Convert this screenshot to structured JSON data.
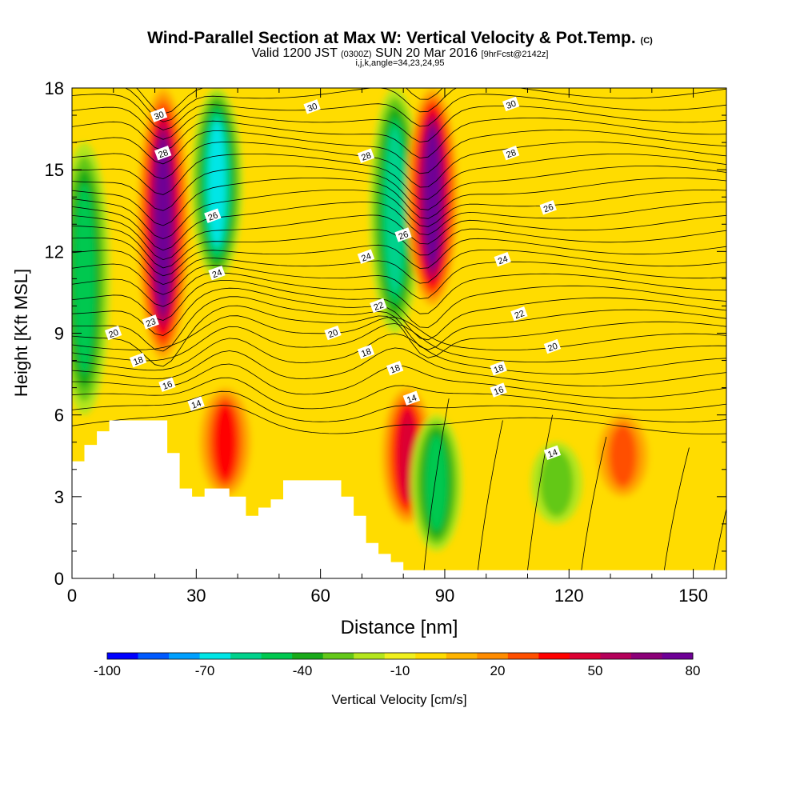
{
  "chart_data": {
    "type": "heatmap",
    "title": "Wind-Parallel Section at Max W: Vertical Velocity & Pot.Temp.",
    "title_mark": "(C)",
    "subtitle_main": "Valid 1200 JST",
    "subtitle_utc": "(0300Z)",
    "subtitle_date": "SUN 20 Mar 2016",
    "subtitle_fcst": "[9hrFcst@2142z]",
    "subsubtitle": "i,j,k,angle=34,23,24,95",
    "xlabel": "Distance [nm]",
    "ylabel": "Height [Kft MSL]",
    "xlim": [
      0,
      158
    ],
    "ylim": [
      0,
      18
    ],
    "xticks": [
      "0",
      "30",
      "60",
      "90",
      "120",
      "150"
    ],
    "yticks": [
      "0",
      "3",
      "6",
      "9",
      "12",
      "15",
      "18"
    ],
    "colorbar_label": "Vertical Velocity [cm/s]",
    "colorbar_ticks": [
      "-100",
      "-70",
      "-40",
      "-10",
      "20",
      "50",
      "80"
    ],
    "colorbar_colors": [
      "#0000ff",
      "#005aff",
      "#00a0ff",
      "#00e6e6",
      "#00d28c",
      "#00c850",
      "#19aa19",
      "#64c819",
      "#b4e61e",
      "#f0f01e",
      "#ffdc00",
      "#ffb400",
      "#ff8c00",
      "#ff5000",
      "#ff0000",
      "#dc0032",
      "#b4005a",
      "#8c0078",
      "#6e0096"
    ],
    "velocity_features": [
      {
        "kind": "updraft",
        "x": 22,
        "y_range": [
          8,
          18
        ],
        "peak_cms": 80
      },
      {
        "kind": "downdraft",
        "x": 3,
        "y_range": [
          6,
          16
        ],
        "peak_cms": -40
      },
      {
        "kind": "downdraft",
        "x": 35,
        "y_range": [
          11,
          18
        ],
        "peak_cms": -60
      },
      {
        "kind": "updraft",
        "x": 37,
        "y_range": [
          3,
          7
        ],
        "peak_cms": 40
      },
      {
        "kind": "downdraft",
        "x": 78,
        "y_range": [
          9,
          18
        ],
        "peak_cms": -50
      },
      {
        "kind": "updraft",
        "x": 87,
        "y_range": [
          10,
          18
        ],
        "peak_cms": 80
      },
      {
        "kind": "updraft",
        "x": 81,
        "y_range": [
          2,
          7
        ],
        "peak_cms": 50
      },
      {
        "kind": "downdraft",
        "x": 88,
        "y_range": [
          1,
          6
        ],
        "peak_cms": -40
      },
      {
        "kind": "downdraft",
        "x": 117,
        "y_range": [
          2,
          5
        ],
        "peak_cms": -20
      },
      {
        "kind": "updraft",
        "x": 133,
        "y_range": [
          3,
          6
        ],
        "peak_cms": 30
      }
    ],
    "terrain_kft": [
      [
        0,
        4.3
      ],
      [
        3,
        4.3
      ],
      [
        3,
        4.9
      ],
      [
        6,
        4.9
      ],
      [
        6,
        5.4
      ],
      [
        9,
        5.4
      ],
      [
        9,
        5.8
      ],
      [
        23,
        5.8
      ],
      [
        23,
        4.6
      ],
      [
        26,
        4.6
      ],
      [
        26,
        3.3
      ],
      [
        29,
        3.3
      ],
      [
        29,
        3.0
      ],
      [
        32,
        3.0
      ],
      [
        32,
        3.3
      ],
      [
        38,
        3.3
      ],
      [
        38,
        3.0
      ],
      [
        42,
        3.0
      ],
      [
        42,
        2.3
      ],
      [
        45,
        2.3
      ],
      [
        45,
        2.6
      ],
      [
        48,
        2.6
      ],
      [
        48,
        2.9
      ],
      [
        51,
        2.9
      ],
      [
        51,
        3.6
      ],
      [
        65,
        3.6
      ],
      [
        65,
        3.0
      ],
      [
        68,
        3.0
      ],
      [
        68,
        2.3
      ],
      [
        71,
        2.3
      ],
      [
        71,
        1.3
      ],
      [
        74,
        1.3
      ],
      [
        74,
        0.9
      ],
      [
        77,
        0.9
      ],
      [
        77,
        0.6
      ],
      [
        80,
        0.6
      ],
      [
        80,
        0.3
      ],
      [
        158,
        0.3
      ]
    ],
    "theta_contours": [
      {
        "level": "14",
        "label_pos": [
          [
            30,
            6.4
          ],
          [
            82,
            6.6
          ],
          [
            116,
            4.6
          ]
        ]
      },
      {
        "level": "16",
        "label_pos": [
          [
            23,
            7.1
          ],
          [
            103,
            6.9
          ]
        ]
      },
      {
        "level": "18",
        "label_pos": [
          [
            16,
            8.0
          ],
          [
            71,
            8.3
          ],
          [
            78,
            7.7
          ],
          [
            103,
            7.7
          ]
        ]
      },
      {
        "level": "20",
        "label_pos": [
          [
            10,
            9.0
          ],
          [
            63,
            9.0
          ],
          [
            116,
            8.5
          ]
        ]
      },
      {
        "level": "22",
        "label_pos": [
          [
            74,
            10.0
          ],
          [
            108,
            9.7
          ]
        ]
      },
      {
        "level": "23",
        "label_pos": [
          [
            19,
            9.4
          ]
        ]
      },
      {
        "level": "24",
        "label_pos": [
          [
            35,
            11.2
          ],
          [
            71,
            11.8
          ],
          [
            104,
            11.7
          ]
        ]
      },
      {
        "level": "26",
        "label_pos": [
          [
            34,
            13.3
          ],
          [
            80,
            12.6
          ],
          [
            115,
            13.6
          ]
        ]
      },
      {
        "level": "28",
        "label_pos": [
          [
            22,
            15.6
          ],
          [
            71,
            15.5
          ],
          [
            106,
            15.6
          ]
        ]
      },
      {
        "level": "30",
        "label_pos": [
          [
            21,
            17.0
          ],
          [
            58,
            17.3
          ],
          [
            106,
            17.4
          ]
        ]
      }
    ]
  }
}
